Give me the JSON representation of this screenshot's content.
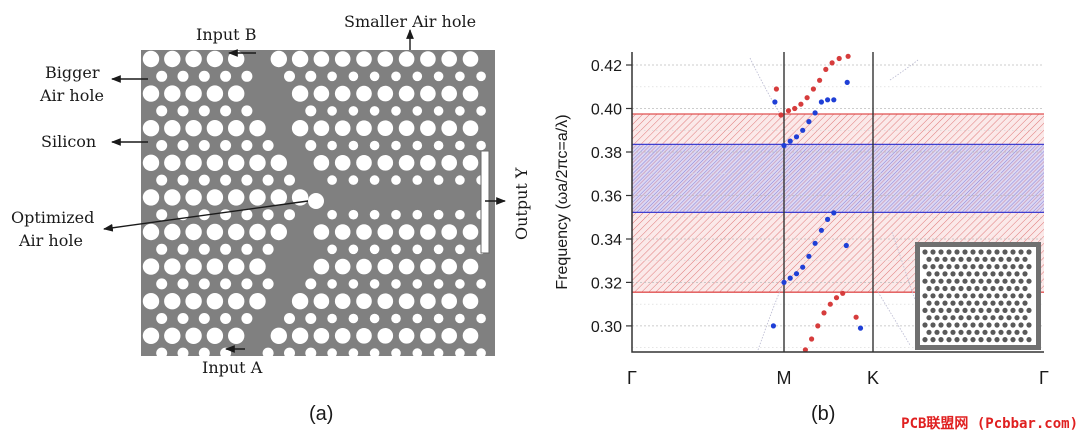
{
  "panel_a": {
    "caption": "(a)",
    "labels": {
      "input_b": "Input B",
      "smaller_air_hole": "Smaller Air hole",
      "bigger_air_hole_line1": "Bigger",
      "bigger_air_hole_line2": "Air hole",
      "silicon": "Silicon",
      "optimized_line1": "Optimized",
      "optimized_line2": "Air hole",
      "output_y": "Output Y",
      "input_a": "Input A"
    },
    "colors": {
      "silicon": "#808080",
      "hole": "#ffffff",
      "text": "#1a1a1a"
    }
  },
  "panel_b": {
    "caption": "(b)",
    "colors": {
      "red_band": "#e05050",
      "blue_band": "#4040d0",
      "red_dot": "#d63c3c",
      "blue_dot": "#1f3fd6",
      "frame": "#333333"
    }
  },
  "chart_data": {
    "type": "scatter",
    "ylabel": "Frequency (ωa/2πc=a/λ)",
    "xlabel": "",
    "ylim": [
      0.288,
      0.426
    ],
    "yticks": [
      "0.42",
      "0.40",
      "0.38",
      "0.36",
      "0.34",
      "0.32",
      "0.30"
    ],
    "xticks": [
      "Γ",
      "M",
      "K",
      "Γ"
    ],
    "grid": "horizontal dotted",
    "bands": [
      {
        "color": "red",
        "y_low": 0.3155,
        "y_high": 0.3975
      },
      {
        "color": "blue",
        "y_low": 0.3522,
        "y_high": 0.3835
      }
    ],
    "series": [
      {
        "color": "red",
        "points": [
          [
            0.95,
            0.409
          ],
          [
            0.98,
            0.397
          ],
          [
            1.05,
            0.399
          ],
          [
            1.12,
            0.4
          ],
          [
            1.19,
            0.402
          ],
          [
            1.26,
            0.405
          ],
          [
            1.33,
            0.409
          ],
          [
            1.4,
            0.413
          ],
          [
            1.47,
            0.418
          ],
          [
            1.54,
            0.421
          ],
          [
            1.62,
            0.423
          ],
          [
            1.72,
            0.424
          ],
          [
            1.24,
            0.289
          ],
          [
            1.31,
            0.294
          ],
          [
            1.38,
            0.3
          ],
          [
            1.45,
            0.306
          ],
          [
            1.52,
            0.31
          ],
          [
            1.59,
            0.313
          ],
          [
            1.66,
            0.315
          ],
          [
            1.81,
            0.304
          ]
        ]
      },
      {
        "color": "blue",
        "points": [
          [
            0.94,
            0.403
          ],
          [
            1.0,
            0.383
          ],
          [
            1.07,
            0.385
          ],
          [
            1.14,
            0.387
          ],
          [
            1.21,
            0.39
          ],
          [
            1.28,
            0.394
          ],
          [
            1.35,
            0.398
          ],
          [
            1.42,
            0.403
          ],
          [
            1.49,
            0.404
          ],
          [
            1.56,
            0.404
          ],
          [
            1.71,
            0.412
          ],
          [
            0.93,
            0.3
          ],
          [
            1.0,
            0.32
          ],
          [
            1.07,
            0.322
          ],
          [
            1.14,
            0.324
          ],
          [
            1.21,
            0.327
          ],
          [
            1.28,
            0.332
          ],
          [
            1.35,
            0.338
          ],
          [
            1.42,
            0.344
          ],
          [
            1.49,
            0.349
          ],
          [
            1.56,
            0.352
          ],
          [
            1.7,
            0.337
          ],
          [
            1.86,
            0.299
          ]
        ]
      }
    ]
  },
  "watermark": "PCB联盟网 (Pcbbar.com)"
}
